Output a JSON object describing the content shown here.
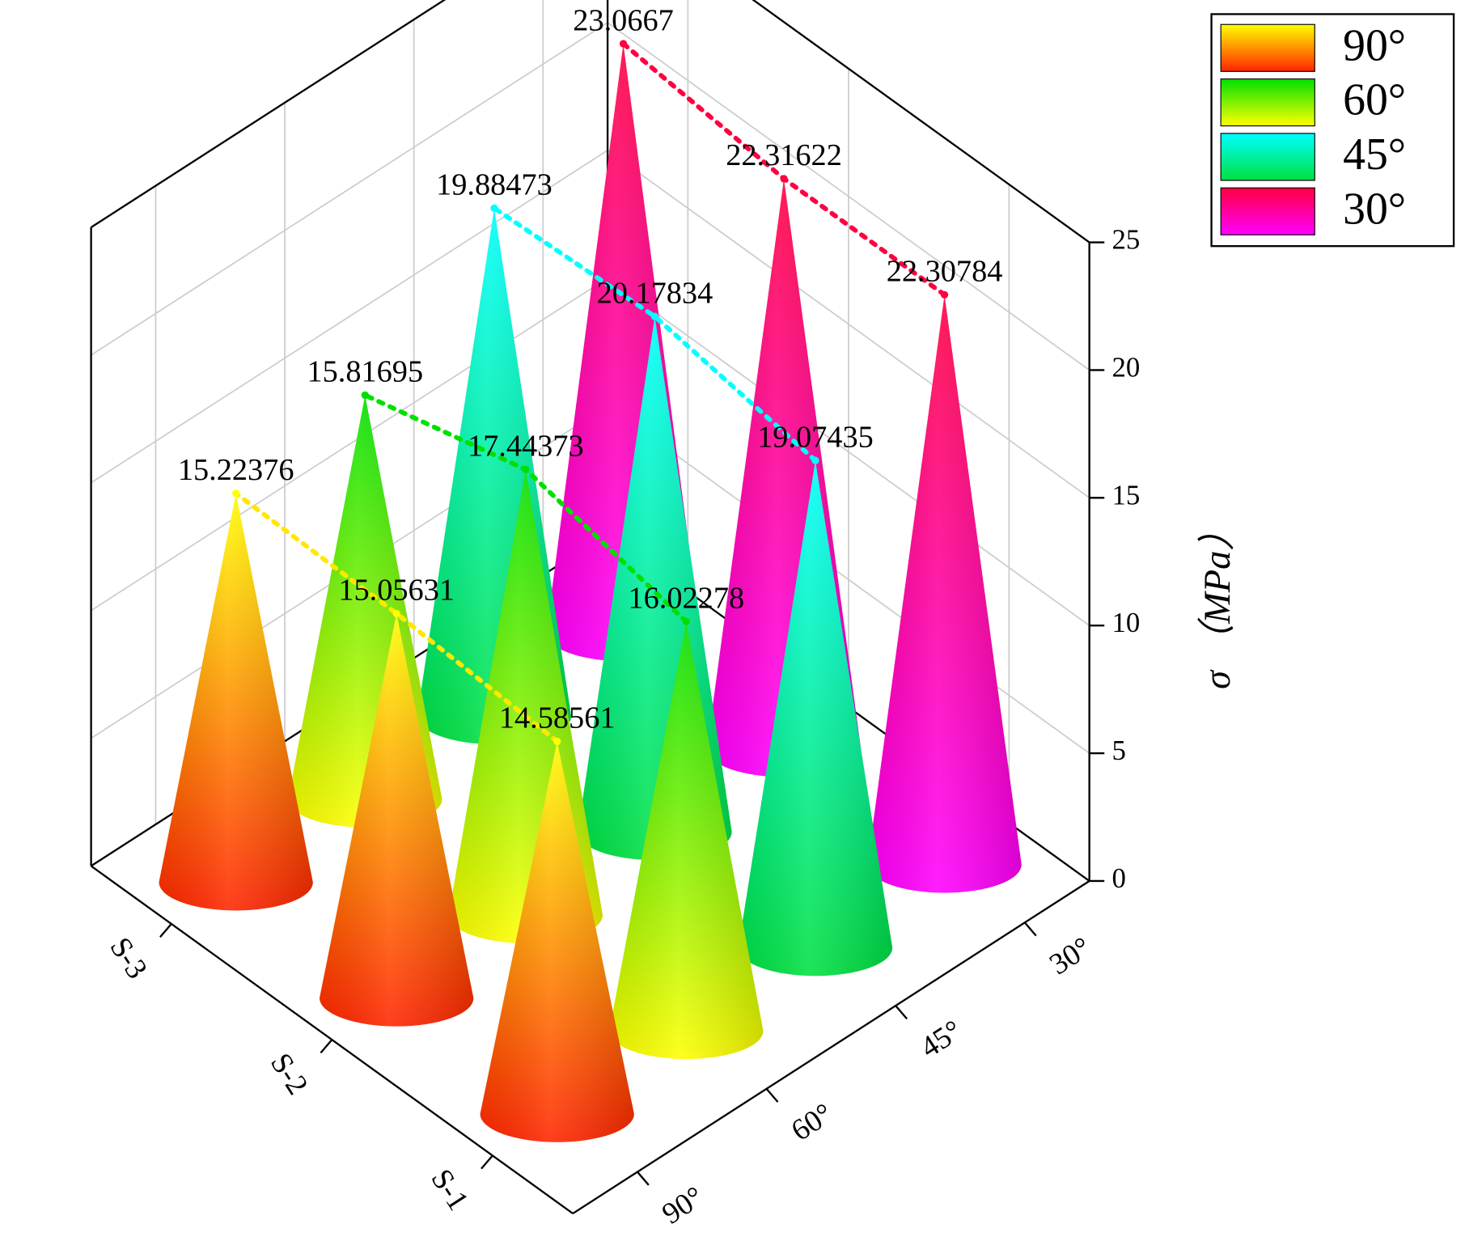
{
  "chart_data": {
    "type": "cone",
    "categories": [
      "S-1",
      "S-2",
      "S-3"
    ],
    "series": [
      {
        "name": "90°",
        "colors": [
          "#ffff00",
          "#ff2400"
        ],
        "values": [
          14.58561,
          15.05631,
          15.22376
        ]
      },
      {
        "name": "60°",
        "colors": [
          "#00e000",
          "#ffff00"
        ],
        "values": [
          16.02278,
          17.44373,
          15.81695
        ]
      },
      {
        "name": "45°",
        "colors": [
          "#00ffff",
          "#00e040"
        ],
        "values": [
          19.07435,
          20.17834,
          19.88473
        ]
      },
      {
        "name": "30°",
        "colors": [
          "#ff0040",
          "#ff00ff"
        ],
        "values": [
          22.30784,
          22.31622,
          23.0667
        ]
      }
    ],
    "ylabel": "σ （MPa）",
    "ylim": [
      0,
      25
    ],
    "yticks": [
      0,
      5,
      10,
      15,
      20,
      25
    ],
    "grid": true,
    "legend": "top-right"
  }
}
